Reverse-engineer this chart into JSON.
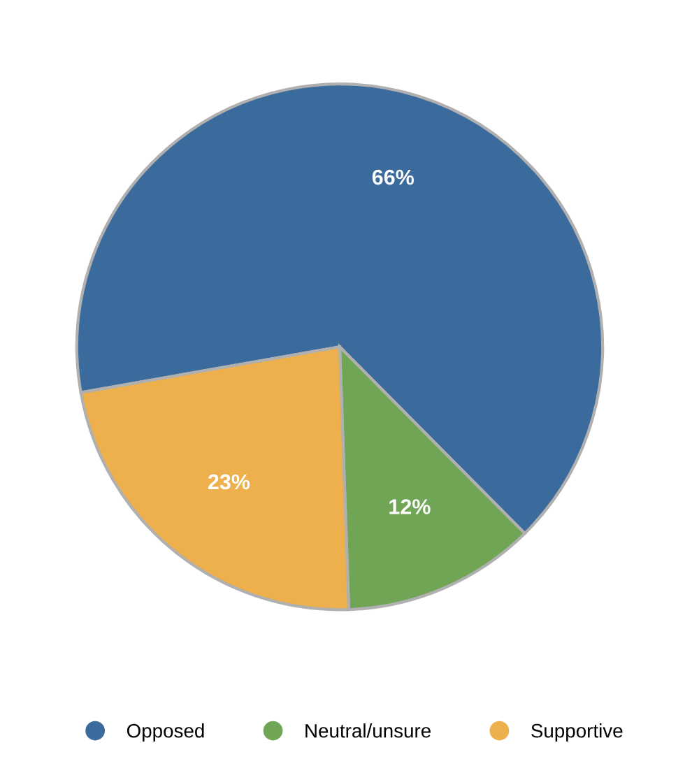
{
  "chart_data": {
    "type": "pie",
    "categories": [
      "Opposed",
      "Neutral/unsure",
      "Supportive"
    ],
    "values": [
      66,
      12,
      23
    ],
    "colors": [
      "#3b6b9c",
      "#6fa554",
      "#edb04c"
    ],
    "data_labels": true,
    "value_labels": [
      "66%",
      "12%",
      "23%"
    ],
    "legend": "bottom"
  }
}
